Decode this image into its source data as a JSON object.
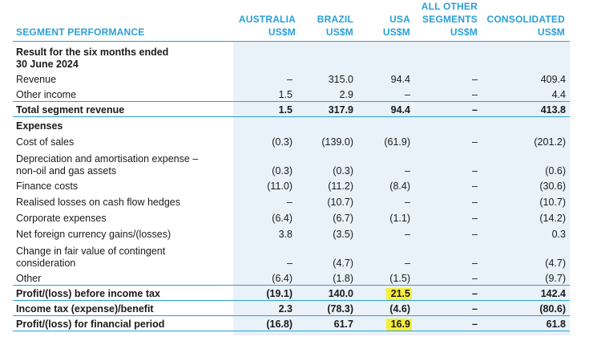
{
  "header": {
    "segment_performance": "SEGMENT PERFORMANCE",
    "columns": [
      {
        "line1": "",
        "line2": "AUSTRALIA",
        "line3": "US$M"
      },
      {
        "line1": "",
        "line2": "BRAZIL",
        "line3": "US$M"
      },
      {
        "line1": "",
        "line2": "USA",
        "line3": "US$M"
      },
      {
        "line1": "ALL OTHER",
        "line2": "SEGMENTS",
        "line3": "US$M"
      },
      {
        "line1": "",
        "line2": "CONSOLIDATED",
        "line3": "US$M"
      }
    ]
  },
  "rows": [
    {
      "label": "Result for the six months ended\n30 June 2024",
      "values": [
        "",
        "",
        "",
        "",
        ""
      ]
    },
    {
      "label": "Revenue",
      "values": [
        "–",
        "315.0",
        "94.4",
        "–",
        "409.4"
      ]
    },
    {
      "label": "Other income",
      "values": [
        "1.5",
        "2.9",
        "–",
        "–",
        "4.4"
      ]
    },
    {
      "label": "Total segment revenue",
      "values": [
        "1.5",
        "317.9",
        "94.4",
        "–",
        "413.8"
      ]
    },
    {
      "label": "Expenses",
      "values": [
        "",
        "",
        "",
        "",
        ""
      ]
    },
    {
      "label": "Cost of sales",
      "values": [
        "(0.3)",
        "(139.0)",
        "(61.9)",
        "–",
        "(201.2)"
      ]
    },
    {
      "label": "Depreciation and amortisation expense –\nnon-oil and gas assets",
      "values": [
        "(0.3)",
        "(0.3)",
        "–",
        "–",
        "(0.6)"
      ]
    },
    {
      "label": "Finance costs",
      "values": [
        "(11.0)",
        "(11.2)",
        "(8.4)",
        "–",
        "(30.6)"
      ]
    },
    {
      "label": "Realised losses on cash flow hedges",
      "values": [
        "–",
        "(10.7)",
        "–",
        "–",
        "(10.7)"
      ]
    },
    {
      "label": "Corporate expenses",
      "values": [
        "(6.4)",
        "(6.7)",
        "(1.1)",
        "–",
        "(14.2)"
      ]
    },
    {
      "label": "Net foreign currency gains/(losses)",
      "values": [
        "3.8",
        "(3.5)",
        "–",
        "–",
        "0.3"
      ]
    },
    {
      "label": "Change in fair value of contingent\nconsideration",
      "values": [
        "–",
        "(4.7)",
        "–",
        "–",
        "(4.7)"
      ]
    },
    {
      "label": "Other",
      "values": [
        "(6.4)",
        "(1.8)",
        "(1.5)",
        "–",
        "(9.7)"
      ]
    },
    {
      "label": "Profit/(loss) before income tax",
      "values": [
        "(19.1)",
        "140.0",
        "21.5",
        "–",
        "142.4"
      ]
    },
    {
      "label": "Income tax (expense)/benefit",
      "values": [
        "2.3",
        "(78.3)",
        "(4.6)",
        "–",
        "(80.6)"
      ]
    },
    {
      "label": "Profit/(loss) for financial period",
      "values": [
        "(16.8)",
        "61.7",
        "16.9",
        "–",
        "61.8"
      ]
    }
  ]
}
